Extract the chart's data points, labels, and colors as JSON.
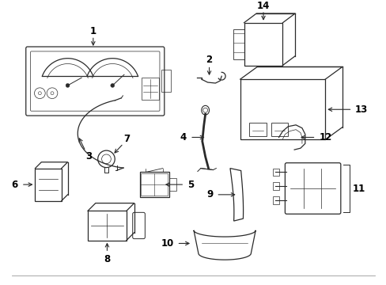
{
  "background_color": "#ffffff",
  "line_color": "#2a2a2a",
  "text_color": "#000000",
  "figsize": [
    4.89,
    3.6
  ],
  "dpi": 100
}
